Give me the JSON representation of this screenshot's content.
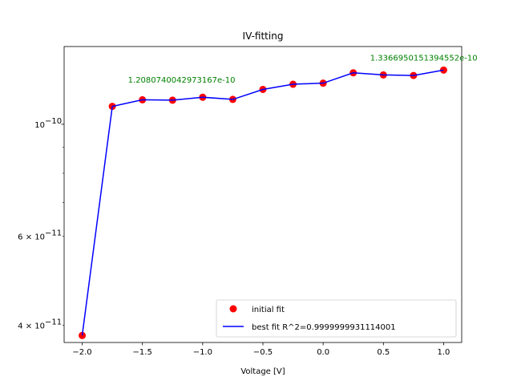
{
  "chart_data": {
    "type": "scatter",
    "title": "IV-fitting",
    "xlabel": "Voltage [V]",
    "ylabel": "",
    "yscale": "log",
    "xlim": [
      -2.15,
      1.15
    ],
    "ylim": [
      3.7e-11,
      1.425e-10
    ],
    "grid": false,
    "legend_placement": "lower-right",
    "x_ticks": [
      {
        "value": -2.0,
        "label": "−2.0"
      },
      {
        "value": -1.5,
        "label": "−1.5"
      },
      {
        "value": -1.0,
        "label": "−1.0"
      },
      {
        "value": -0.5,
        "label": "−0.5"
      },
      {
        "value": 0.0,
        "label": "0.0"
      },
      {
        "value": 0.5,
        "label": "0.5"
      },
      {
        "value": 1.0,
        "label": "1.0"
      }
    ],
    "y_major_ticks": [
      {
        "value": 1e-10,
        "base": "10",
        "exp": "−10"
      }
    ],
    "y_minor_ticks": [
      {
        "value": 4e-11,
        "mant": "4 × 10",
        "exp": "−11"
      },
      {
        "value": 6e-11,
        "mant": "6 × 10",
        "exp": "−11"
      },
      {
        "value": 7e-11
      },
      {
        "value": 8e-11
      },
      {
        "value": 9e-11
      }
    ],
    "x": [
      -2.0,
      -1.75,
      -1.5,
      -1.25,
      -1.0,
      -0.75,
      -0.5,
      -0.25,
      0.0,
      0.25,
      0.5,
      0.75,
      1.0
    ],
    "series": [
      {
        "name": "initial fit",
        "kind": "markers",
        "color": "#ff0000",
        "values": [
          3.82e-11,
          1.085e-10,
          1.118e-10,
          1.116e-10,
          1.131e-10,
          1.12e-10,
          1.172e-10,
          1.2e-10,
          1.206e-10,
          1.264e-10,
          1.252e-10,
          1.249e-10,
          1.28e-10
        ]
      },
      {
        "name": "best fit R^2=0.9999999931114001",
        "kind": "line",
        "color": "#0000ff",
        "values": [
          3.82e-11,
          1.085e-10,
          1.118e-10,
          1.116e-10,
          1.131e-10,
          1.12e-10,
          1.172e-10,
          1.2e-10,
          1.206e-10,
          1.264e-10,
          1.252e-10,
          1.249e-10,
          1.28e-10
        ]
      }
    ],
    "annotations": [
      {
        "text": "1.2080740042973167e-10",
        "x": -1.62,
        "y": 1.208e-10,
        "color": "#008000"
      },
      {
        "text": "1.3366950151394552e-10",
        "x": 0.39,
        "y": 1.337e-10,
        "color": "#008000"
      }
    ]
  }
}
